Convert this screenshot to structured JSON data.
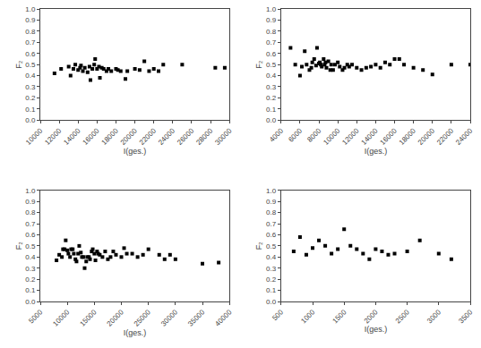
{
  "chart_data": [
    {
      "type": "scatter",
      "xlabel": "I(ges.)",
      "ylabel": "F₂",
      "xlim": [
        10000,
        30000
      ],
      "ylim": [
        0.0,
        1.0
      ],
      "xticks": [
        10000,
        12000,
        14000,
        16000,
        18000,
        20000,
        22000,
        24000,
        26000,
        28000,
        30000
      ],
      "yticks": [
        {
          "value": 0.0,
          "label": "0.0"
        },
        0.1,
        0.2,
        0.3,
        0.4,
        0.5,
        0.6,
        0.7,
        0.8,
        0.9,
        {
          "value": 1.0,
          "label": "1.0"
        }
      ],
      "x": [
        11500,
        12200,
        13000,
        13200,
        13500,
        13700,
        14000,
        14200,
        14300,
        14500,
        14700,
        15000,
        15200,
        15300,
        15500,
        15700,
        15800,
        16000,
        16200,
        16300,
        16500,
        16700,
        17000,
        17200,
        17500,
        18000,
        18200,
        18500,
        19000,
        19200,
        20000,
        20500,
        21000,
        21500,
        22000,
        22500,
        23000,
        25000,
        28500,
        29500
      ],
      "values": [
        0.42,
        0.46,
        0.48,
        0.4,
        0.46,
        0.5,
        0.45,
        0.47,
        0.49,
        0.44,
        0.47,
        0.43,
        0.48,
        0.36,
        0.46,
        0.5,
        0.55,
        0.46,
        0.48,
        0.38,
        0.47,
        0.46,
        0.44,
        0.46,
        0.44,
        0.46,
        0.45,
        0.44,
        0.37,
        0.44,
        0.46,
        0.45,
        0.53,
        0.44,
        0.46,
        0.44,
        0.5,
        0.5,
        0.47,
        0.47
      ],
      "color": "black",
      "marker": "square",
      "grid": false
    },
    {
      "type": "scatter",
      "xlabel": "I(ges.)",
      "ylabel": "F₂",
      "xlim": [
        4000,
        24000
      ],
      "ylim": [
        0.0,
        1.0
      ],
      "xticks": [
        4000,
        6000,
        8000,
        10000,
        12000,
        14000,
        16000,
        18000,
        20000,
        22000,
        24000
      ],
      "yticks": [
        {
          "value": 0.0,
          "label": "0.0"
        },
        0.1,
        0.2,
        0.3,
        0.4,
        0.5,
        0.6,
        0.7,
        0.8,
        0.9,
        {
          "value": 1.0,
          "label": "1.0"
        }
      ],
      "x": [
        5000,
        5500,
        6000,
        6200,
        6500,
        6700,
        7000,
        7200,
        7300,
        7500,
        7700,
        7800,
        8000,
        8100,
        8200,
        8300,
        8500,
        8600,
        8700,
        8800,
        9000,
        9200,
        9300,
        9500,
        9700,
        10000,
        10200,
        10500,
        10700,
        11000,
        11200,
        11500,
        12000,
        12500,
        13000,
        13500,
        14000,
        14500,
        15000,
        15500,
        16000,
        16500,
        17000,
        18000,
        19000,
        20000,
        22000,
        24000
      ],
      "values": [
        0.65,
        0.5,
        0.4,
        0.48,
        0.62,
        0.5,
        0.45,
        0.47,
        0.52,
        0.55,
        0.49,
        0.65,
        0.51,
        0.52,
        0.5,
        0.48,
        0.55,
        0.5,
        0.52,
        0.47,
        0.53,
        0.45,
        0.5,
        0.45,
        0.5,
        0.52,
        0.48,
        0.45,
        0.47,
        0.5,
        0.48,
        0.5,
        0.47,
        0.45,
        0.47,
        0.48,
        0.5,
        0.47,
        0.52,
        0.5,
        0.55,
        0.55,
        0.5,
        0.47,
        0.45,
        0.41,
        0.5,
        0.5
      ],
      "color": "black",
      "marker": "square",
      "grid": false
    },
    {
      "type": "scatter",
      "xlabel": "I(ges.)",
      "ylabel": "F₂",
      "xlim": [
        5000,
        40000
      ],
      "ylim": [
        0.0,
        1.0
      ],
      "xticks": [
        5000,
        10000,
        15000,
        20000,
        25000,
        30000,
        35000,
        40000
      ],
      "yticks": [
        {
          "value": 0.0,
          "label": "0.0"
        },
        0.1,
        0.2,
        0.3,
        0.4,
        0.5,
        0.6,
        0.7,
        0.8,
        0.9,
        {
          "value": 1.0,
          "label": "1.0"
        }
      ],
      "x": [
        8000,
        8500,
        9000,
        9200,
        9500,
        9700,
        10000,
        10200,
        10500,
        10700,
        11000,
        11200,
        11500,
        11700,
        12000,
        12200,
        12500,
        12700,
        13000,
        13200,
        13500,
        13700,
        14000,
        14200,
        14500,
        14700,
        15000,
        15200,
        15500,
        15700,
        16000,
        16500,
        17000,
        17500,
        18000,
        18500,
        19000,
        20000,
        20500,
        21000,
        22000,
        23000,
        24000,
        25000,
        27000,
        28000,
        29000,
        30000,
        35000,
        38000
      ],
      "values": [
        0.37,
        0.42,
        0.4,
        0.47,
        0.47,
        0.55,
        0.46,
        0.43,
        0.4,
        0.47,
        0.47,
        0.43,
        0.38,
        0.36,
        0.43,
        0.5,
        0.44,
        0.4,
        0.4,
        0.3,
        0.36,
        0.4,
        0.4,
        0.38,
        0.45,
        0.47,
        0.43,
        0.37,
        0.45,
        0.43,
        0.42,
        0.4,
        0.45,
        0.38,
        0.4,
        0.45,
        0.42,
        0.4,
        0.48,
        0.43,
        0.43,
        0.4,
        0.42,
        0.47,
        0.42,
        0.38,
        0.42,
        0.38,
        0.34,
        0.35
      ],
      "color": "black",
      "marker": "square",
      "grid": false
    },
    {
      "type": "scatter",
      "xlabel": "I(ges.)",
      "ylabel": "F₂",
      "xlim": [
        500,
        3500
      ],
      "ylim": [
        0.0,
        1.0
      ],
      "xticks": [
        500,
        1000,
        1500,
        2000,
        2500,
        3000,
        3500
      ],
      "yticks": [
        {
          "value": 0.0,
          "label": "0.0"
        },
        0.1,
        0.2,
        0.3,
        0.4,
        0.5,
        0.6,
        0.7,
        0.8,
        0.9,
        {
          "value": 1.0,
          "label": "1.0"
        }
      ],
      "x": [
        700,
        800,
        900,
        1000,
        1100,
        1200,
        1300,
        1400,
        1500,
        1600,
        1700,
        1800,
        1900,
        2000,
        2100,
        2200,
        2300,
        2500,
        2700,
        3000,
        3200
      ],
      "values": [
        0.45,
        0.58,
        0.42,
        0.48,
        0.55,
        0.5,
        0.43,
        0.47,
        0.65,
        0.5,
        0.47,
        0.43,
        0.38,
        0.47,
        0.45,
        0.42,
        0.43,
        0.45,
        0.55,
        0.43,
        0.38
      ],
      "color": "black",
      "marker": "square",
      "grid": false
    }
  ]
}
